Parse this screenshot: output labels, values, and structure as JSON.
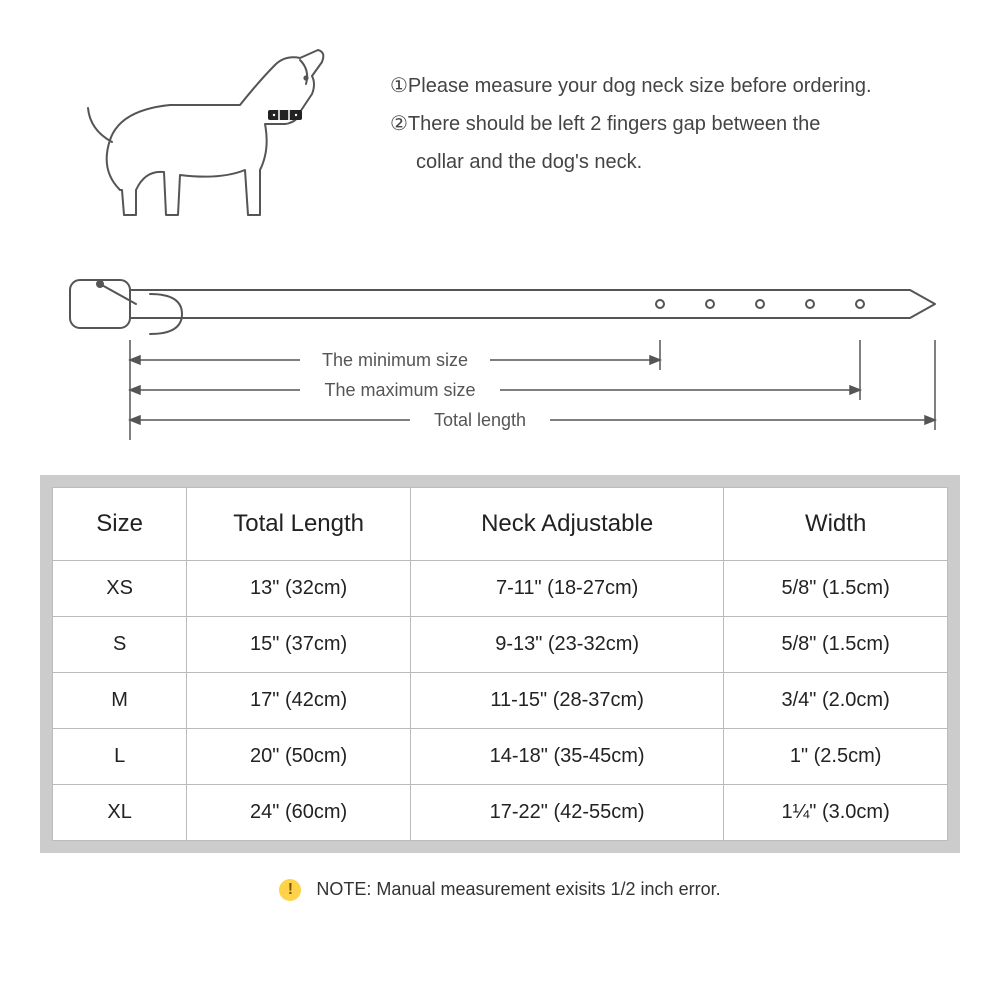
{
  "instructions": {
    "line1": "①Please measure your dog neck size before ordering.",
    "line2": "②There should be left 2 fingers gap between the",
    "line2b": "    collar and the dog's neck."
  },
  "diagram": {
    "min_label": "The minimum size",
    "max_label": "The maximum size",
    "total_label": "Total length"
  },
  "table": {
    "columns": [
      "Size",
      "Total Length",
      "Neck Adjustable",
      "Width"
    ],
    "rows": [
      [
        "XS",
        "13\" (32cm)",
        "7-11\" (18-27cm)",
        "5/8\" (1.5cm)"
      ],
      [
        "S",
        "15\" (37cm)",
        "9-13\" (23-32cm)",
        "5/8\" (1.5cm)"
      ],
      [
        "M",
        "17\" (42cm)",
        "11-15\" (28-37cm)",
        "3/4\" (2.0cm)"
      ],
      [
        "L",
        "20\" (50cm)",
        "14-18\" (35-45cm)",
        "1\" (2.5cm)"
      ],
      [
        "XL",
        "24\" (60cm)",
        "17-22\" (42-55cm)",
        "1¼\" (3.0cm)"
      ]
    ],
    "border_color": "#cccccc",
    "cell_border_color": "#bbbbbb",
    "header_fontsize": 24,
    "cell_fontsize": 20
  },
  "note": {
    "icon": "!",
    "text": "NOTE: Manual measurement exisits 1/2 inch error."
  },
  "colors": {
    "background": "#ffffff",
    "text": "#333333",
    "stroke": "#555555",
    "note_bg": "#ffd24a"
  }
}
